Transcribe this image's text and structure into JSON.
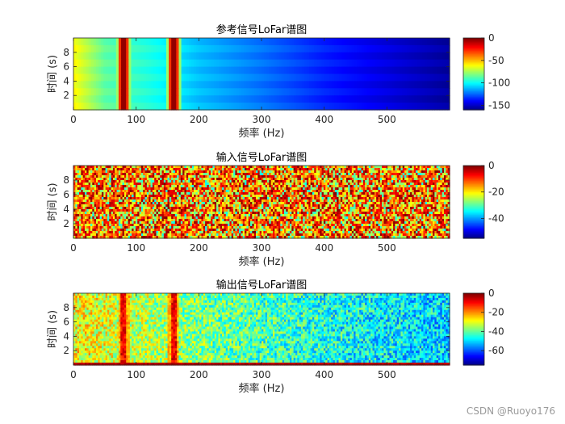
{
  "chart_data": [
    {
      "type": "heatmap",
      "title": "参考信号LoFar谱图",
      "xlabel": "频率 (Hz)",
      "ylabel": "时间 (s)",
      "xlim": [
        0,
        600
      ],
      "ylim": [
        0,
        10
      ],
      "x_ticks": [
        0,
        100,
        200,
        300,
        400,
        500
      ],
      "y_ticks": [
        2,
        4,
        6,
        8
      ],
      "colorbar": {
        "range": [
          -160,
          0
        ],
        "ticks": [
          0,
          -50,
          -100,
          -150
        ]
      },
      "colormap": "jet",
      "pattern": "smooth spectrum: background about -60 dB near 0 Hz falling to about -155 dB at 600 Hz; strong 0 dB lines at 80 Hz and 160 Hz",
      "line_frequencies_hz": [
        80,
        160
      ],
      "background_db_at_freq": [
        [
          0,
          -60
        ],
        [
          50,
          -85
        ],
        [
          120,
          -95
        ],
        [
          200,
          -110
        ],
        [
          300,
          -122
        ],
        [
          400,
          -135
        ],
        [
          500,
          -145
        ],
        [
          600,
          -155
        ]
      ],
      "line_peak_db": 0
    },
    {
      "type": "heatmap",
      "title": "输入信号LoFar谱图",
      "xlabel": "频率 (Hz)",
      "ylabel": "时间 (s)",
      "xlim": [
        0,
        600
      ],
      "ylim": [
        0,
        10
      ],
      "x_ticks": [
        0,
        100,
        200,
        300,
        400,
        500
      ],
      "y_ticks": [
        2,
        4,
        6,
        8
      ],
      "colorbar": {
        "range": [
          -55,
          0
        ],
        "ticks": [
          0,
          -20,
          -40
        ]
      },
      "colormap": "jet",
      "pattern": "broadband random noise spread roughly between -35 dB and 0 dB, no visible lines",
      "noise_db_range": [
        -35,
        0
      ]
    },
    {
      "type": "heatmap",
      "title": "输出信号LoFar谱图",
      "xlabel": "频率 (Hz)",
      "ylabel": "时间 (s)",
      "xlim": [
        0,
        600
      ],
      "ylim": [
        0,
        10
      ],
      "x_ticks": [
        0,
        100,
        200,
        300,
        400,
        500
      ],
      "y_ticks": [
        2,
        4,
        6,
        8
      ],
      "colorbar": {
        "range": [
          -75,
          0
        ],
        "ticks": [
          0,
          -20,
          -40,
          -60
        ]
      },
      "colormap": "jet",
      "pattern": "noisy spectrum decaying from about -30 dB at low frequency to about -50 dB at 600 Hz, lines recovered at 80 Hz and 160 Hz, strong first time row",
      "line_frequencies_hz": [
        80,
        160
      ],
      "background_db_at_freq": [
        [
          0,
          -28
        ],
        [
          200,
          -38
        ],
        [
          400,
          -45
        ],
        [
          600,
          -50
        ]
      ],
      "line_peak_db": -3
    }
  ],
  "watermark": "CSDN @Ruoyo176"
}
